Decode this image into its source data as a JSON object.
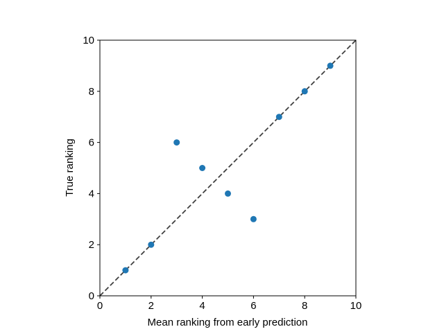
{
  "chart_data": {
    "type": "scatter",
    "title": "",
    "xlabel": "Mean ranking from early prediction",
    "ylabel": "True ranking",
    "xlim": [
      0,
      10
    ],
    "ylim": [
      0,
      10
    ],
    "xticks": [
      "0",
      "2",
      "4",
      "6",
      "8",
      "10"
    ],
    "yticks": [
      "0",
      "2",
      "4",
      "6",
      "8",
      "10"
    ],
    "grid": false,
    "legend": "none",
    "points": [
      {
        "x": 1,
        "y": 1
      },
      {
        "x": 2,
        "y": 2
      },
      {
        "x": 3,
        "y": 6
      },
      {
        "x": 4,
        "y": 5
      },
      {
        "x": 5,
        "y": 4
      },
      {
        "x": 6,
        "y": 3
      },
      {
        "x": 7,
        "y": 7
      },
      {
        "x": 8,
        "y": 8
      },
      {
        "x": 9,
        "y": 9
      }
    ],
    "reference_line": {
      "style": "dashed",
      "from": [
        0,
        0
      ],
      "to": [
        10,
        10
      ],
      "color": "#404040"
    },
    "marker_color": "#1f77b4"
  }
}
